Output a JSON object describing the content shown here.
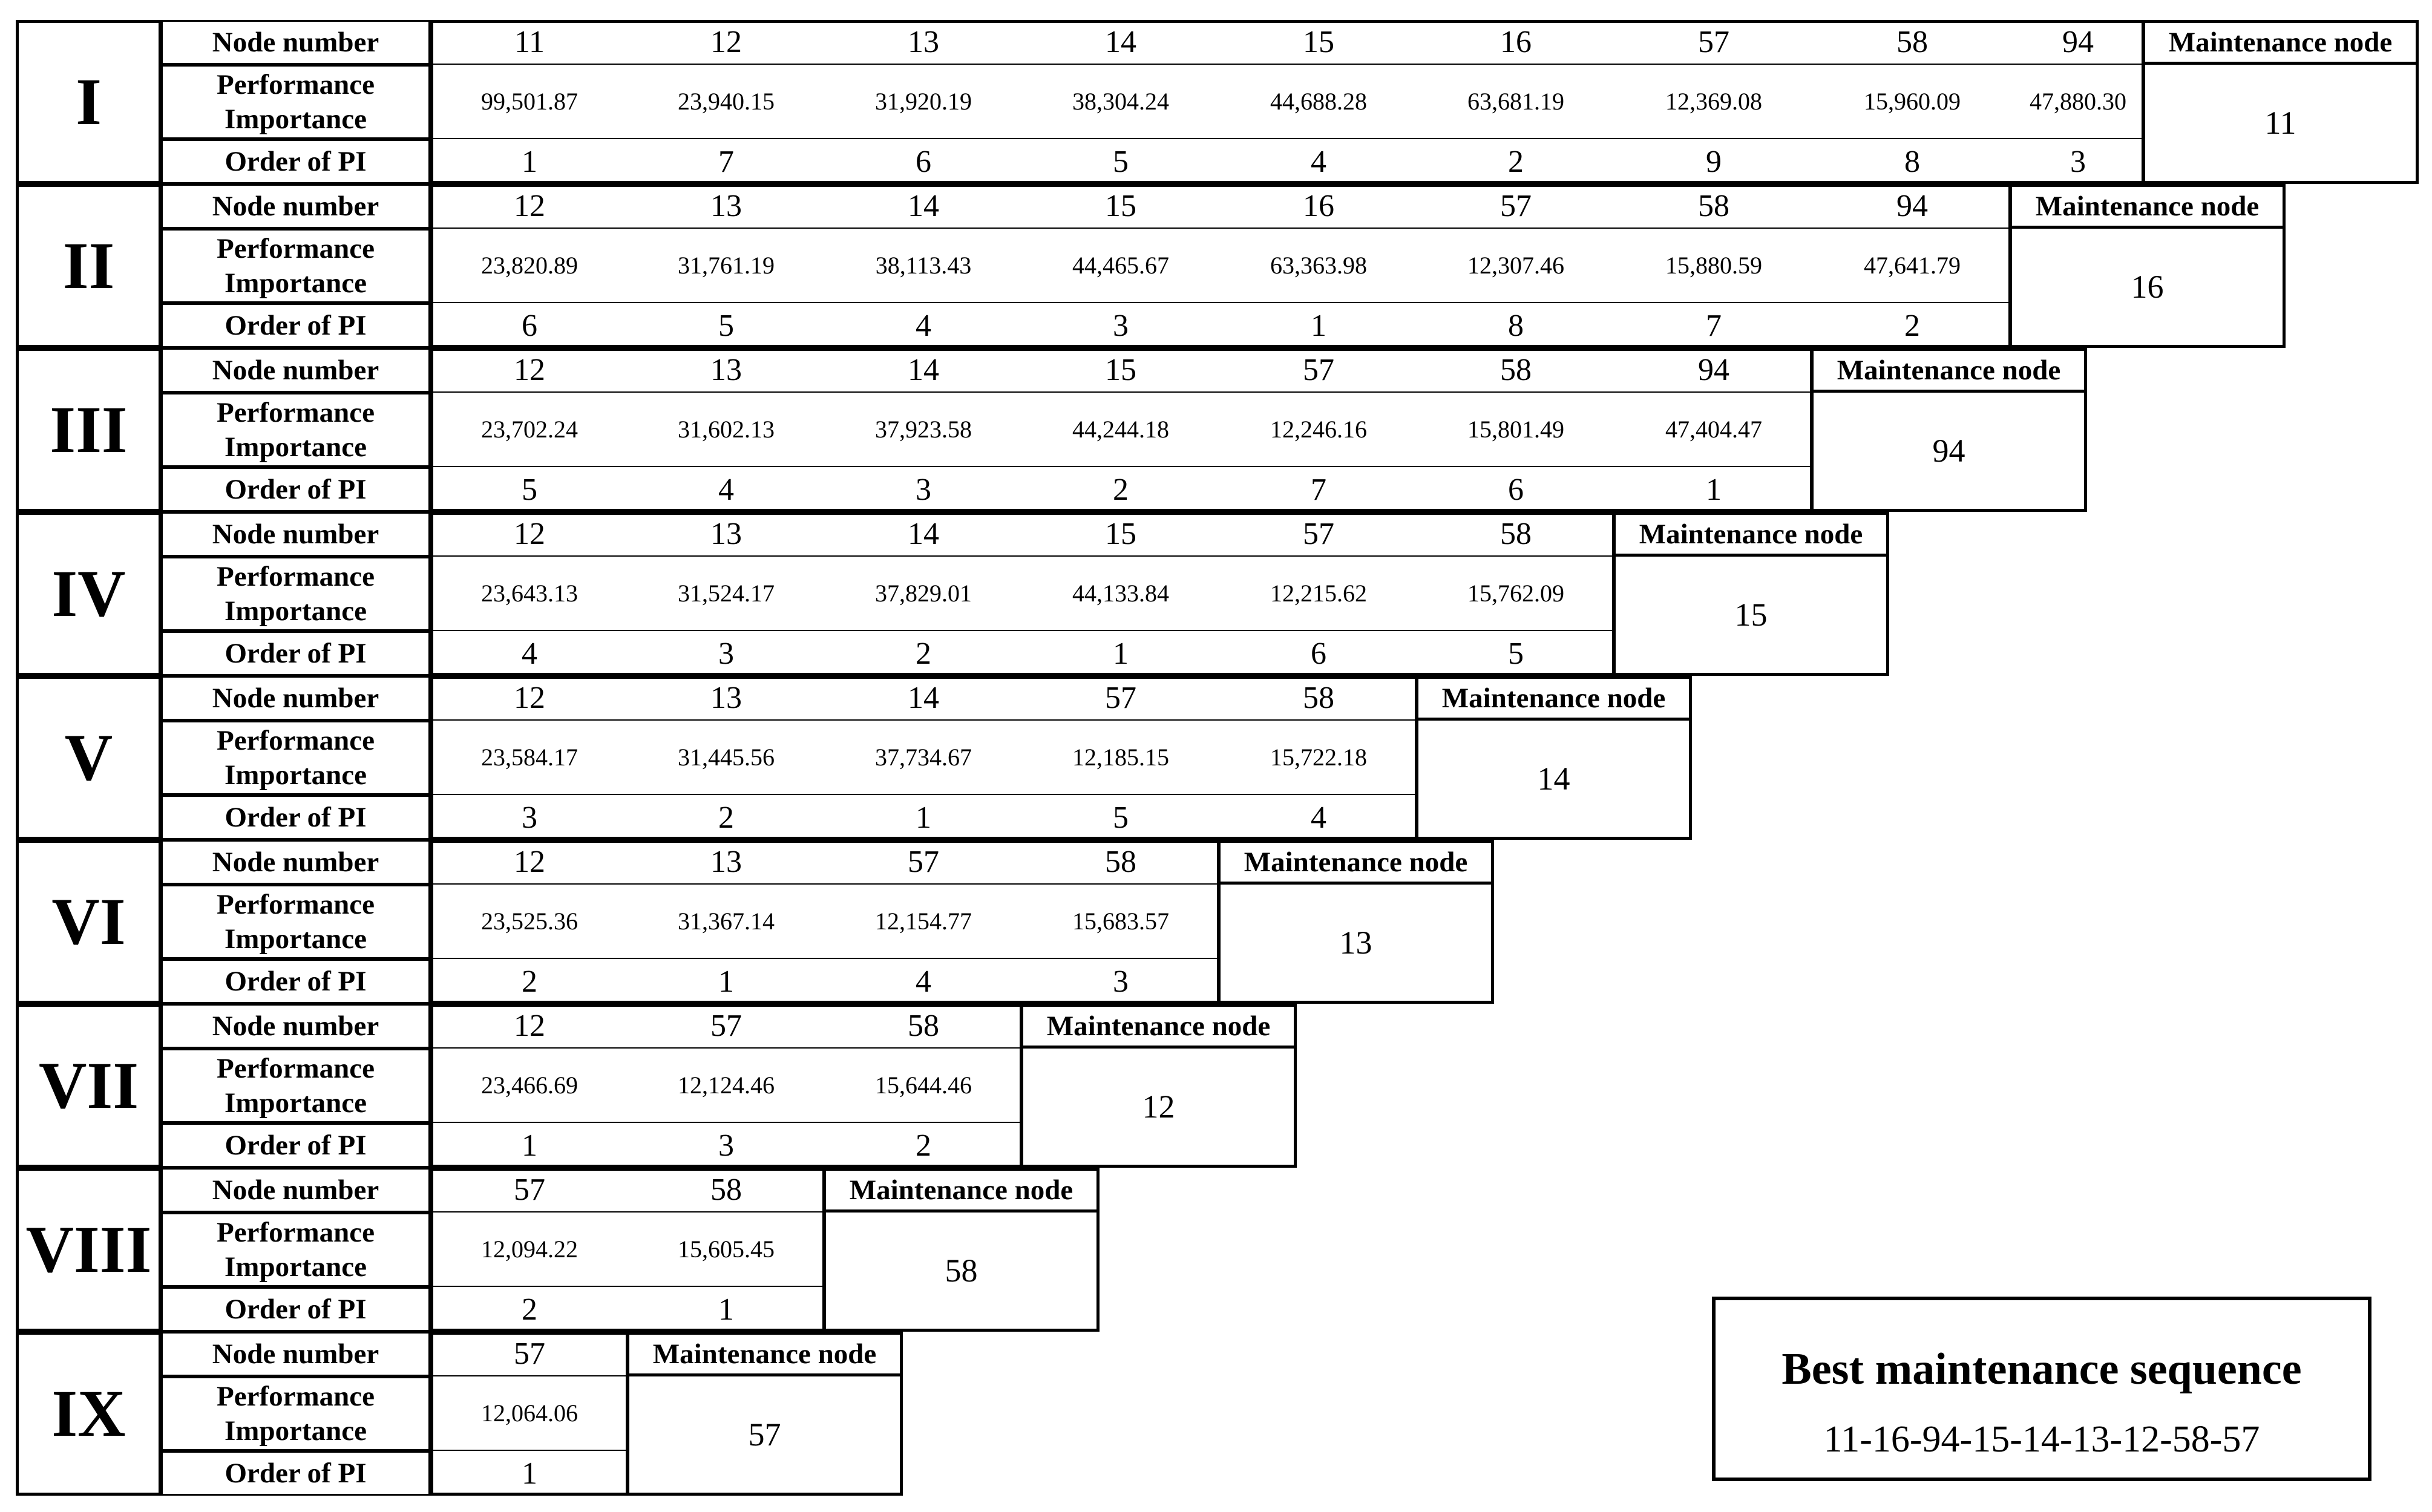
{
  "labels": {
    "node_number": "Node number",
    "performance_importance": "Performance Importance",
    "order_of_pi": "Order of PI",
    "maintenance_node": "Maintenance node"
  },
  "stages": [
    {
      "numeral": "I",
      "maintenance_node": "11",
      "nodes": [
        "11",
        "12",
        "13",
        "14",
        "15",
        "16",
        "57",
        "58",
        "94"
      ],
      "performance_importance": [
        "99,501.87",
        "23,940.15",
        "31,920.19",
        "38,304.24",
        "44,688.28",
        "63,681.19",
        "12,369.08",
        "15,960.09",
        "47,880.30"
      ],
      "order": [
        "1",
        "7",
        "6",
        "5",
        "4",
        "2",
        "9",
        "8",
        "3"
      ]
    },
    {
      "numeral": "II",
      "maintenance_node": "16",
      "nodes": [
        "12",
        "13",
        "14",
        "15",
        "16",
        "57",
        "58",
        "94"
      ],
      "performance_importance": [
        "23,820.89",
        "31,761.19",
        "38,113.43",
        "44,465.67",
        "63,363.98",
        "12,307.46",
        "15,880.59",
        "47,641.79"
      ],
      "order": [
        "6",
        "5",
        "4",
        "3",
        "1",
        "8",
        "7",
        "2"
      ]
    },
    {
      "numeral": "III",
      "maintenance_node": "94",
      "nodes": [
        "12",
        "13",
        "14",
        "15",
        "57",
        "58",
        "94"
      ],
      "performance_importance": [
        "23,702.24",
        "31,602.13",
        "37,923.58",
        "44,244.18",
        "12,246.16",
        "15,801.49",
        "47,404.47"
      ],
      "order": [
        "5",
        "4",
        "3",
        "2",
        "7",
        "6",
        "1"
      ]
    },
    {
      "numeral": "IV",
      "maintenance_node": "15",
      "nodes": [
        "12",
        "13",
        "14",
        "15",
        "57",
        "58"
      ],
      "performance_importance": [
        "23,643.13",
        "31,524.17",
        "37,829.01",
        "44,133.84",
        "12,215.62",
        "15,762.09"
      ],
      "order": [
        "4",
        "3",
        "2",
        "1",
        "6",
        "5"
      ]
    },
    {
      "numeral": "V",
      "maintenance_node": "14",
      "nodes": [
        "12",
        "13",
        "14",
        "57",
        "58"
      ],
      "performance_importance": [
        "23,584.17",
        "31,445.56",
        "37,734.67",
        "12,185.15",
        "15,722.18"
      ],
      "order": [
        "3",
        "2",
        "1",
        "5",
        "4"
      ]
    },
    {
      "numeral": "VI",
      "maintenance_node": "13",
      "nodes": [
        "12",
        "13",
        "57",
        "58"
      ],
      "performance_importance": [
        "23,525.36",
        "31,367.14",
        "12,154.77",
        "15,683.57"
      ],
      "order": [
        "2",
        "1",
        "4",
        "3"
      ]
    },
    {
      "numeral": "VII",
      "maintenance_node": "12",
      "nodes": [
        "12",
        "57",
        "58"
      ],
      "performance_importance": [
        "23,466.69",
        "12,124.46",
        "15,644.46"
      ],
      "order": [
        "1",
        "3",
        "2"
      ]
    },
    {
      "numeral": "VIII",
      "maintenance_node": "58",
      "nodes": [
        "57",
        "58"
      ],
      "performance_importance": [
        "12,094.22",
        "15,605.45"
      ],
      "order": [
        "2",
        "1"
      ]
    },
    {
      "numeral": "IX",
      "maintenance_node": "57",
      "nodes": [
        "57"
      ],
      "performance_importance": [
        "12,064.06"
      ],
      "order": [
        "1"
      ]
    }
  ],
  "best_sequence": {
    "title": "Best maintenance sequence",
    "sequence": "11-16-94-15-14-13-12-58-57"
  }
}
